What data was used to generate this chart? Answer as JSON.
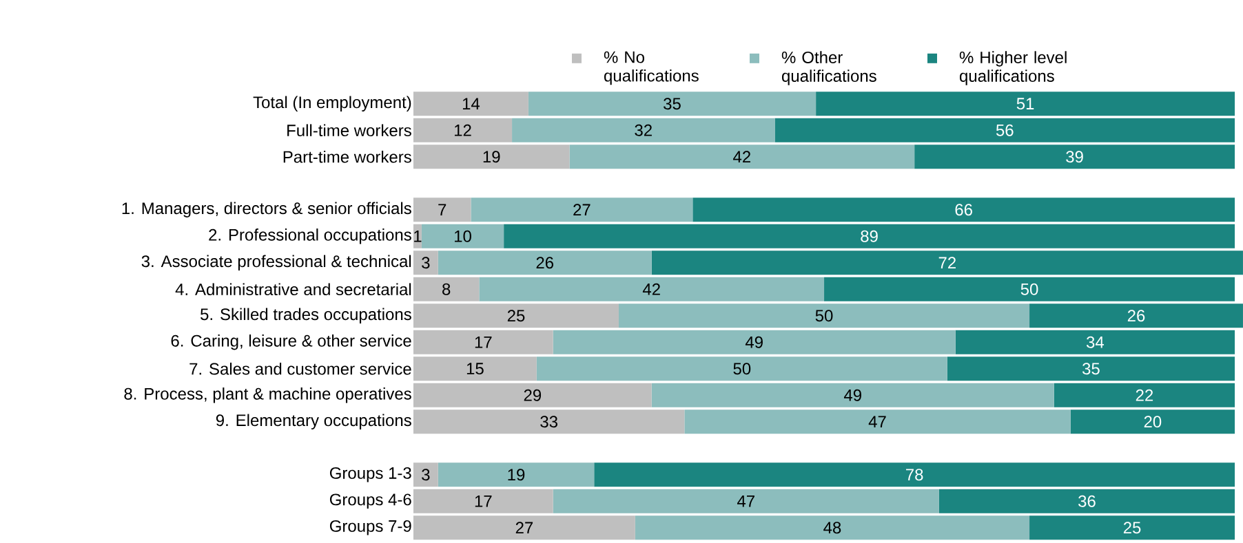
{
  "chart_data": {
    "type": "bar",
    "orientation": "horizontal",
    "stacked": true,
    "data_labels": true,
    "legend": "top",
    "tick_labels": "y",
    "categories": [
      "Total (In employment)",
      "Full-time workers",
      "Part-time workers",
      null,
      "1. Managers, directors & senior officials",
      "2. Professional occupations",
      "3. Associate professional & technical",
      "4. Administrative and secretarial",
      "5. Skilled trades occupations",
      "6. Caring, leisure & other service",
      "7. Sales and customer service",
      "8. Process, plant & machine operatives",
      "9. Elementary occupations",
      null,
      "Groups 1-3",
      "Groups 4-6",
      "Groups 7-9"
    ],
    "series": [
      {
        "name": "% No qualifications",
        "color": "#bfbfbf",
        "values": [
          14,
          12,
          19,
          null,
          7,
          1,
          3,
          8,
          25,
          17,
          15,
          29,
          33,
          null,
          3,
          17,
          27
        ]
      },
      {
        "name": "% Other qualifications",
        "color": "#8cbdbd",
        "values": [
          35,
          32,
          42,
          null,
          27,
          10,
          26,
          42,
          50,
          49,
          50,
          49,
          47,
          null,
          19,
          47,
          48
        ]
      },
      {
        "name": "% Higher level qualifications",
        "color": "#1b8580",
        "values": [
          51,
          56,
          39,
          null,
          66,
          89,
          72,
          50,
          26,
          34,
          35,
          22,
          20,
          null,
          78,
          36,
          25
        ]
      }
    ]
  }
}
